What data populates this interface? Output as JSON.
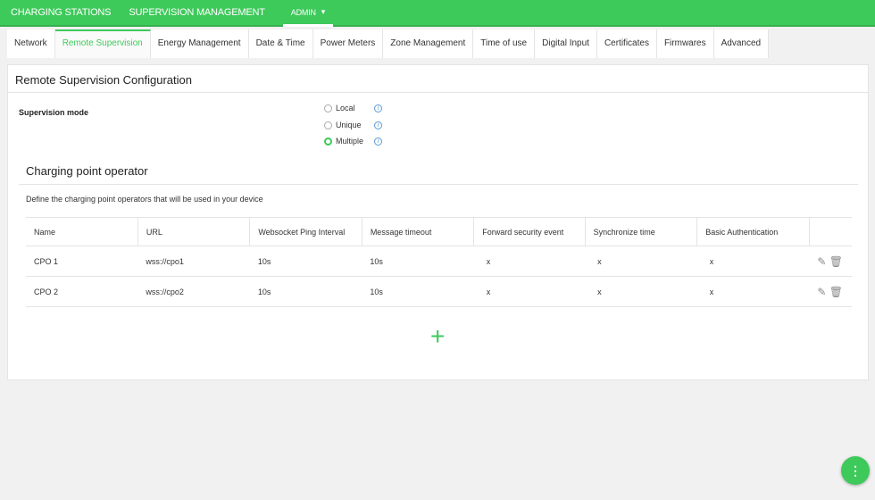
{
  "topnav": {
    "charging_stations": "CHARGING STATIONS",
    "supervision_management": "SUPERVISION MANAGEMENT",
    "admin": "ADMIN",
    "admin_caret": "▾"
  },
  "tabs": [
    "Network",
    "Remote Supervision",
    "Energy Management",
    "Date & Time",
    "Power Meters",
    "Zone Management",
    "Time of use",
    "Digital Input",
    "Certificates",
    "Firmwares",
    "Advanced"
  ],
  "active_tab": "Remote Supervision",
  "panel": {
    "title": "Remote Supervision Configuration",
    "supervision_mode_label": "Supervision mode",
    "modes": [
      {
        "label": "Local",
        "selected": false
      },
      {
        "label": "Unique",
        "selected": false
      },
      {
        "label": "Multiple",
        "selected": true
      }
    ],
    "info_glyph": "i",
    "cpo_title": "Charging point operator",
    "cpo_desc": "Define the charging point operators that will be used in your device",
    "columns": [
      "Name",
      "URL",
      "Websocket Ping Interval",
      "Message timeout",
      "Forward security event",
      "Synchronize time",
      "Basic Authentication"
    ],
    "rows": [
      {
        "name": "CPO 1",
        "url": "wss://cpo1",
        "ping": "10s",
        "timeout": "10s",
        "forward": "x",
        "sync": "x",
        "auth": "x"
      },
      {
        "name": "CPO 2",
        "url": "wss://cpo2",
        "ping": "10s",
        "timeout": "10s",
        "forward": "x",
        "sync": "x",
        "auth": "x"
      }
    ],
    "add_glyph": "+"
  },
  "fab_glyph": "⋮",
  "accent_color": "#3ec95b"
}
